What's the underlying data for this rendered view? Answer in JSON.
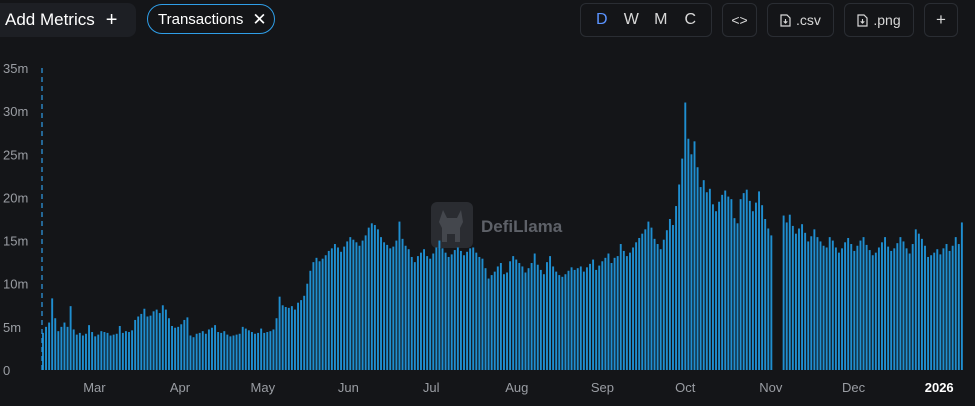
{
  "toolbar": {
    "add_metrics": "Add Metrics",
    "plus_glyph": "+",
    "metric_chip": "Transactions",
    "close_glyph": "✕",
    "intervals": [
      "D",
      "W",
      "M",
      "C"
    ],
    "active_interval": "D",
    "embed_glyph": "<>",
    "csv_label": ".csv",
    "png_label": ".png",
    "more_glyph": "+"
  },
  "watermark": "DefiLlama",
  "colors": {
    "bar": "#1f8ed0",
    "accent": "#2f9ee8",
    "active_interval": "#5a93ff",
    "background": "#141518"
  },
  "chart_data": {
    "type": "bar",
    "ylabel": "",
    "xlabel": "",
    "ylim": [
      0,
      35000000
    ],
    "y_ticks": [
      {
        "value": 0,
        "label": "0"
      },
      {
        "value": 5000000,
        "label": "5m"
      },
      {
        "value": 10000000,
        "label": "10m"
      },
      {
        "value": 15000000,
        "label": "15m"
      },
      {
        "value": 20000000,
        "label": "20m"
      },
      {
        "value": 25000000,
        "label": "25m"
      },
      {
        "value": 30000000,
        "label": "30m"
      },
      {
        "value": 35000000,
        "label": "35m"
      }
    ],
    "x_ticks": [
      {
        "date": "2025-03-01",
        "label": "Mar"
      },
      {
        "date": "2025-04-01",
        "label": "Apr"
      },
      {
        "date": "2025-05-01",
        "label": "May"
      },
      {
        "date": "2025-06-01",
        "label": "Jun"
      },
      {
        "date": "2025-07-01",
        "label": "Jul"
      },
      {
        "date": "2025-08-01",
        "label": "Aug"
      },
      {
        "date": "2025-09-01",
        "label": "Sep"
      },
      {
        "date": "2025-10-01",
        "label": "Oct"
      },
      {
        "date": "2025-11-01",
        "label": "Nov"
      },
      {
        "date": "2025-12-01",
        "label": "Dec"
      },
      {
        "date": "2026-01-01",
        "label": "2026",
        "bold": true
      }
    ],
    "x_start": "2025-02-10",
    "x_end": "2026-01-10",
    "grid": false,
    "series": [
      {
        "values": [
          4.3,
          5.0,
          5.5,
          8.3,
          6.0,
          4.5,
          5.0,
          5.5,
          5.0,
          7.4,
          4.7,
          4.1,
          4.3,
          4.0,
          4.2,
          5.2,
          4.4,
          3.9,
          4.1,
          4.5,
          4.4,
          4.3,
          4.0,
          4.1,
          4.2,
          5.1,
          4.3,
          4.5,
          4.4,
          4.6,
          5.8,
          6.2,
          6.5,
          7.1,
          6.2,
          6.3,
          6.8,
          7.0,
          6.6,
          7.5,
          7.0,
          6.0,
          5.1,
          4.9,
          5.0,
          5.3,
          5.8,
          6.1,
          4.0,
          3.8,
          4.2,
          4.3,
          4.5,
          4.2,
          4.7,
          4.9,
          5.2,
          4.4,
          4.3,
          4.5,
          4.1,
          3.9,
          4.0,
          4.1,
          4.2,
          5.0,
          4.8,
          4.6,
          4.4,
          4.2,
          4.3,
          4.8,
          4.3,
          4.4,
          4.5,
          4.7,
          6.0,
          8.5,
          7.5,
          7.3,
          7.2,
          7.4,
          7.0,
          7.8,
          8.1,
          8.6,
          10.0,
          11.5,
          12.5,
          13.0,
          12.6,
          12.9,
          13.3,
          13.8,
          14.1,
          14.6,
          14.2,
          13.7,
          14.3,
          14.9,
          15.4,
          15.1,
          14.8,
          14.4,
          15.0,
          15.6,
          16.5,
          17.0,
          16.8,
          16.3,
          15.4,
          14.8,
          14.5,
          14.1,
          14.3,
          15.0,
          17.2,
          15.2,
          14.4,
          14.0,
          13.1,
          12.5,
          13.2,
          13.6,
          14.0,
          13.2,
          12.9,
          13.5,
          14.2,
          15.0,
          14.1,
          13.6,
          13.1,
          13.4,
          13.9,
          14.2,
          13.8,
          13.3,
          13.7,
          14.1,
          14.2,
          13.6,
          13.1,
          12.9,
          11.8,
          10.6,
          11.0,
          11.4,
          12.0,
          12.4,
          11.1,
          11.3,
          12.6,
          13.2,
          12.8,
          12.4,
          12.0,
          11.3,
          11.8,
          12.4,
          13.5,
          12.2,
          11.6,
          11.1,
          12.5,
          13.2,
          12.0,
          11.4,
          11.0,
          10.8,
          11.1,
          11.5,
          11.9,
          11.6,
          11.8,
          12.0,
          11.4,
          11.9,
          12.3,
          12.8,
          11.6,
          12.1,
          12.6,
          13.0,
          13.5,
          12.4,
          13.0,
          13.2,
          14.6,
          13.8,
          13.2,
          13.6,
          14.2,
          14.8,
          15.3,
          15.8,
          16.3,
          17.2,
          16.5,
          15.2,
          14.6,
          14.0,
          15.1,
          16.2,
          17.5,
          16.8,
          19.0,
          21.5,
          24.5,
          31.0,
          26.8,
          25.0,
          26.5,
          23.5,
          21.2,
          22.0,
          20.6,
          21.0,
          19.2,
          18.4,
          19.5,
          20.3,
          20.8,
          20.1,
          19.8,
          17.6,
          17.0,
          19.8,
          20.5,
          20.9,
          19.6,
          18.4,
          19.4,
          20.7,
          19.1,
          17.5,
          16.4,
          15.6,
          0,
          0,
          0,
          17.9,
          17.1,
          18.0,
          16.7,
          15.8,
          16.4,
          16.9,
          15.9,
          14.9,
          15.5,
          16.3,
          15.4,
          14.9,
          14.4,
          14.2,
          15.4,
          15.0,
          14.2,
          13.6,
          14.1,
          14.8,
          15.3,
          14.6,
          13.8,
          14.4,
          15.0,
          15.4,
          14.5,
          13.9,
          13.3,
          13.6,
          14.2,
          14.8,
          15.4,
          14.3,
          13.8,
          14.1,
          14.7,
          15.4,
          14.9,
          14.1,
          13.5,
          14.6,
          16.3,
          15.8,
          15.2,
          14.4,
          13.1,
          13.3,
          13.6,
          14.0,
          13.4,
          14.1,
          14.6,
          13.8,
          14.4,
          15.4,
          14.6,
          17.1
        ]
      }
    ]
  }
}
